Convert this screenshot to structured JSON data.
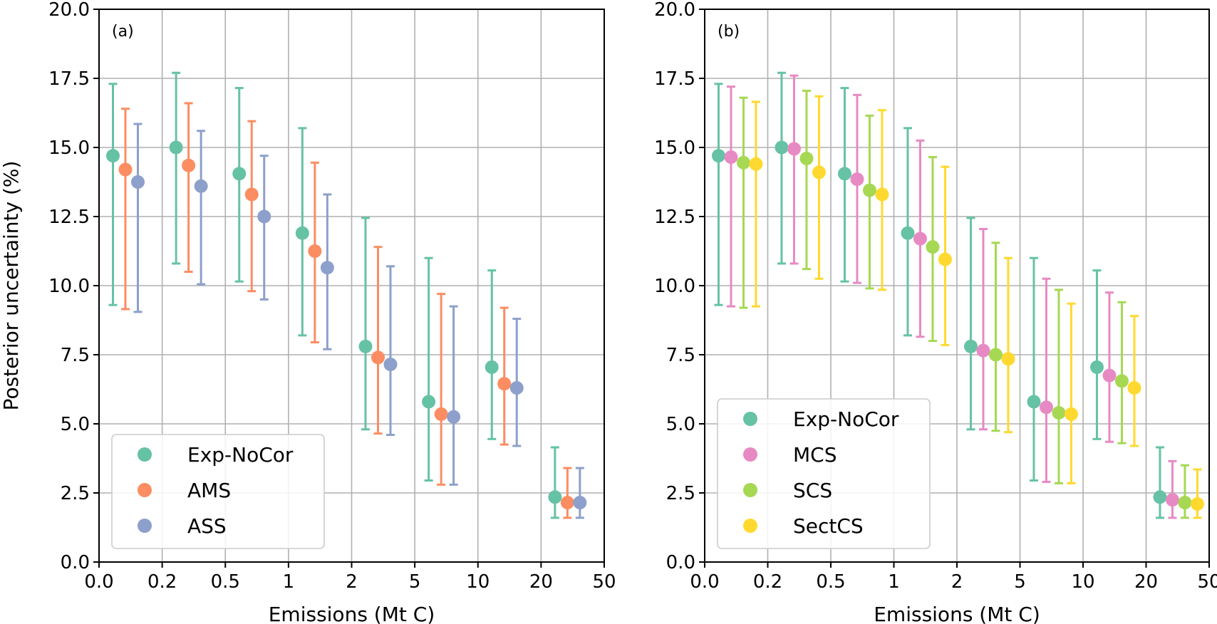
{
  "chart_data": [
    {
      "type": "scatter",
      "panel_label": "(a)",
      "xlabel": "Emissions (Mt C)",
      "ylabel": "Posterior uncertainty (%)",
      "ylim": [
        0,
        20
      ],
      "yticks": [
        "0.0",
        "2.5",
        "5.0",
        "7.5",
        "10.0",
        "12.5",
        "15.0",
        "17.5",
        "20.0"
      ],
      "xtick_labels": [
        "0.0",
        "0.2",
        "0.5",
        "1",
        "2",
        "5",
        "10",
        "20",
        "50"
      ],
      "grid": true,
      "legend_position": "bottom-left",
      "series": [
        {
          "name": "Exp-NoCor",
          "color": "#66c2a5",
          "values": [
            14.7,
            15.0,
            14.05,
            11.9,
            7.8,
            5.8,
            7.05,
            2.35
          ],
          "lower": [
            9.3,
            10.8,
            10.15,
            8.2,
            4.8,
            2.95,
            4.45,
            1.6
          ],
          "upper": [
            17.3,
            17.7,
            17.15,
            15.7,
            12.45,
            11.0,
            10.55,
            4.15
          ]
        },
        {
          "name": "AMS",
          "color": "#fc8d62",
          "values": [
            14.2,
            14.35,
            13.3,
            11.25,
            7.4,
            5.35,
            6.45,
            2.15
          ],
          "lower": [
            9.15,
            10.5,
            9.8,
            7.95,
            4.65,
            2.8,
            4.25,
            1.6
          ],
          "upper": [
            16.4,
            16.6,
            15.95,
            14.45,
            11.4,
            9.7,
            9.2,
            3.4
          ]
        },
        {
          "name": "ASS",
          "color": "#8da0cb",
          "values": [
            13.75,
            13.6,
            12.5,
            10.65,
            7.15,
            5.25,
            6.3,
            2.15
          ],
          "lower": [
            9.05,
            10.05,
            9.5,
            7.7,
            4.6,
            2.8,
            4.2,
            1.6
          ],
          "upper": [
            15.85,
            15.6,
            14.7,
            13.3,
            10.7,
            9.25,
            8.8,
            3.4
          ]
        }
      ]
    },
    {
      "type": "scatter",
      "panel_label": "(b)",
      "xlabel": "Emissions (Mt C)",
      "ylabel": "",
      "ylim": [
        0,
        20
      ],
      "yticks": [
        "0.0",
        "2.5",
        "5.0",
        "7.5",
        "10.0",
        "12.5",
        "15.0",
        "17.5",
        "20.0"
      ],
      "xtick_labels": [
        "0.0",
        "0.2",
        "0.5",
        "1",
        "2",
        "5",
        "10",
        "20",
        "50"
      ],
      "grid": true,
      "legend_position": "bottom-left",
      "series": [
        {
          "name": "Exp-NoCor",
          "color": "#66c2a5",
          "values": [
            14.7,
            15.0,
            14.05,
            11.9,
            7.8,
            5.8,
            7.05,
            2.35
          ],
          "lower": [
            9.3,
            10.8,
            10.15,
            8.2,
            4.8,
            2.95,
            4.45,
            1.6
          ],
          "upper": [
            17.3,
            17.7,
            17.15,
            15.7,
            12.45,
            11.0,
            10.55,
            4.15
          ]
        },
        {
          "name": "MCS",
          "color": "#e78ac3",
          "values": [
            14.65,
            14.95,
            13.85,
            11.7,
            7.65,
            5.6,
            6.75,
            2.25
          ],
          "lower": [
            9.25,
            10.8,
            10.1,
            8.15,
            4.8,
            2.9,
            4.35,
            1.6
          ],
          "upper": [
            17.2,
            17.6,
            16.9,
            15.25,
            12.05,
            10.25,
            9.75,
            3.65
          ]
        },
        {
          "name": "SCS",
          "color": "#a6d854",
          "values": [
            14.45,
            14.6,
            13.45,
            11.4,
            7.5,
            5.4,
            6.55,
            2.15
          ],
          "lower": [
            9.2,
            10.6,
            9.9,
            8.0,
            4.75,
            2.85,
            4.3,
            1.6
          ],
          "upper": [
            16.8,
            17.05,
            16.15,
            14.65,
            11.55,
            9.85,
            9.4,
            3.5
          ]
        },
        {
          "name": "SectCS",
          "color": "#ffd92f",
          "values": [
            14.4,
            14.1,
            13.3,
            10.95,
            7.35,
            5.35,
            6.3,
            2.1
          ],
          "lower": [
            9.25,
            10.25,
            9.85,
            7.85,
            4.7,
            2.85,
            4.2,
            1.6
          ],
          "upper": [
            16.65,
            16.85,
            16.35,
            14.3,
            11.0,
            9.35,
            8.9,
            3.35
          ]
        }
      ]
    }
  ]
}
